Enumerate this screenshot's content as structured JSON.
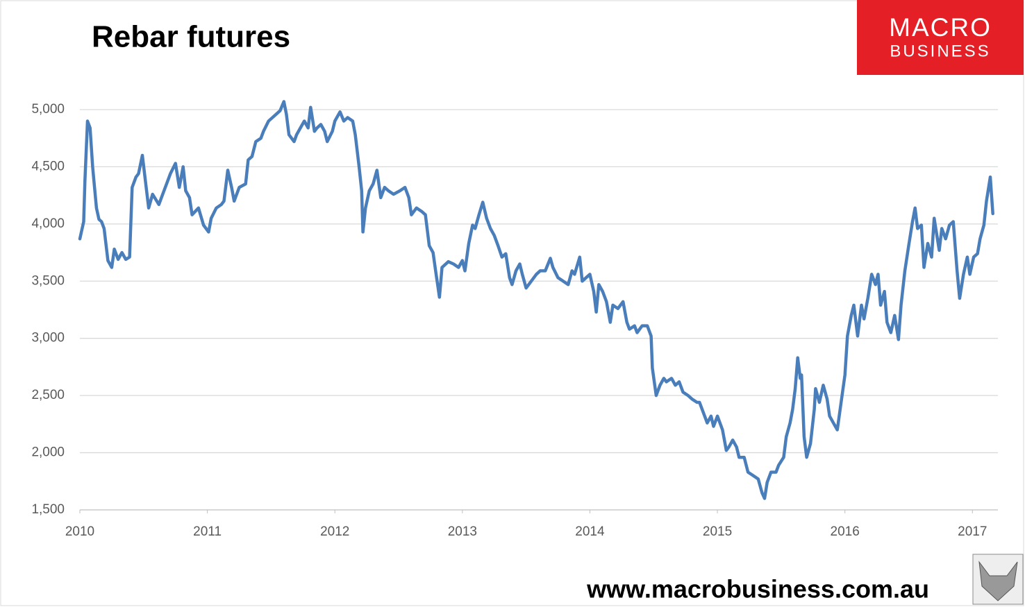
{
  "chart_data": {
    "type": "line",
    "title": "Rebar futures",
    "color": "#4a7ebb",
    "grid": true,
    "xlim": [
      2010,
      2017.2
    ],
    "xticks": [
      2010,
      2011,
      2012,
      2013,
      2014,
      2015,
      2016,
      2017
    ],
    "ylim": [
      1500,
      5200
    ],
    "yticks": [
      {
        "value": 1500,
        "label": "1,500"
      },
      {
        "value": 2000,
        "label": "2,000"
      },
      {
        "value": 2500,
        "label": "2,500"
      },
      {
        "value": 3000,
        "label": "3,000"
      },
      {
        "value": 3500,
        "label": "3,500"
      },
      {
        "value": 4000,
        "label": "4,000"
      },
      {
        "value": 4500,
        "label": "4,500"
      },
      {
        "value": 5000,
        "label": "5,000"
      }
    ],
    "x": [
      2010.0,
      2010.03,
      2010.04,
      2010.06,
      2010.08,
      2010.1,
      2010.11,
      2010.13,
      2010.15,
      2010.17,
      2010.19,
      2010.22,
      2010.25,
      2010.27,
      2010.3,
      2010.33,
      2010.36,
      2010.39,
      2010.41,
      2010.44,
      2010.46,
      2010.49,
      2010.52,
      2010.54,
      2010.57,
      2010.62,
      2010.65,
      2010.71,
      2010.75,
      2010.78,
      2010.81,
      2010.83,
      2010.86,
      2010.88,
      2010.93,
      2010.97,
      2011.01,
      2011.03,
      2011.07,
      2011.11,
      2011.13,
      2011.16,
      2011.19,
      2011.21,
      2011.25,
      2011.3,
      2011.32,
      2011.35,
      2011.38,
      2011.42,
      2011.44,
      2011.48,
      2011.51,
      2011.54,
      2011.57,
      2011.6,
      2011.62,
      2011.64,
      2011.68,
      2011.7,
      2011.73,
      2011.76,
      2011.79,
      2011.81,
      2011.84,
      2011.86,
      2011.89,
      2011.92,
      2011.94,
      2011.98,
      2012.0,
      2012.04,
      2012.07,
      2012.1,
      2012.14,
      2012.16,
      2012.19,
      2012.21,
      2012.22,
      2012.24,
      2012.27,
      2012.3,
      2012.33,
      2012.36,
      2012.39,
      2012.42,
      2012.46,
      2012.51,
      2012.55,
      2012.58,
      2012.6,
      2012.64,
      2012.68,
      2012.71,
      2012.74,
      2012.77,
      2012.79,
      2012.82,
      2012.84,
      2012.89,
      2012.93,
      2012.97,
      2013.0,
      2013.02,
      2013.05,
      2013.08,
      2013.1,
      2013.13,
      2013.16,
      2013.19,
      2013.22,
      2013.25,
      2013.28,
      2013.31,
      2013.34,
      2013.37,
      2013.39,
      2013.42,
      2013.45,
      2013.47,
      2013.5,
      2013.54,
      2013.58,
      2013.61,
      2013.65,
      2013.69,
      2013.71,
      2013.75,
      2013.79,
      2013.83,
      2013.86,
      2013.88,
      2013.92,
      2013.94,
      2013.97,
      2014.0,
      2014.03,
      2014.05,
      2014.07,
      2014.1,
      2014.13,
      2014.16,
      2014.18,
      2014.22,
      2014.26,
      2014.29,
      2014.31,
      2014.35,
      2014.37,
      2014.41,
      2014.45,
      2014.48,
      2014.49,
      2014.52,
      2014.55,
      2014.58,
      2014.6,
      2014.64,
      2014.67,
      2014.7,
      2014.73,
      2014.77,
      2014.8,
      2014.84,
      2014.86,
      2014.89,
      2014.92,
      2014.95,
      2014.97,
      2015.0,
      2015.04,
      2015.07,
      2015.09,
      2015.12,
      2015.15,
      2015.17,
      2015.21,
      2015.24,
      2015.28,
      2015.32,
      2015.35,
      2015.37,
      2015.39,
      2015.42,
      2015.46,
      2015.48,
      2015.52,
      2015.54,
      2015.57,
      2015.59,
      2015.61,
      2015.63,
      2015.65,
      2015.66,
      2015.68,
      2015.7,
      2015.73,
      2015.76,
      2015.77,
      2015.8,
      2015.83,
      2015.86,
      2015.88,
      2015.91,
      2015.94,
      2015.97,
      2016.0,
      2016.02,
      2016.05,
      2016.07,
      2016.1,
      2016.13,
      2016.15,
      2016.18,
      2016.21,
      2016.24,
      2016.26,
      2016.28,
      2016.31,
      2016.33,
      2016.36,
      2016.39,
      2016.42,
      2016.44,
      2016.47,
      2016.5,
      2016.53,
      2016.55,
      2016.57,
      2016.6,
      2016.62,
      2016.65,
      2016.68,
      2016.7,
      2016.74,
      2016.76,
      2016.79,
      2016.82,
      2016.85,
      2016.88,
      2016.9,
      2016.93,
      2016.96,
      2016.98,
      2017.01,
      2017.04,
      2017.06,
      2017.09,
      2017.11,
      2017.14,
      2017.16
    ],
    "values": [
      3870,
      4020,
      4380,
      4900,
      4840,
      4500,
      4380,
      4140,
      4040,
      4020,
      3960,
      3680,
      3620,
      3780,
      3690,
      3750,
      3690,
      3710,
      4320,
      4410,
      4440,
      4600,
      4320,
      4140,
      4260,
      4170,
      4260,
      4440,
      4530,
      4320,
      4500,
      4290,
      4230,
      4080,
      4140,
      3990,
      3930,
      4050,
      4140,
      4170,
      4200,
      4470,
      4320,
      4200,
      4320,
      4350,
      4560,
      4590,
      4720,
      4750,
      4810,
      4900,
      4930,
      4960,
      4990,
      5070,
      4960,
      4780,
      4720,
      4780,
      4840,
      4900,
      4840,
      5020,
      4810,
      4840,
      4870,
      4810,
      4720,
      4810,
      4900,
      4980,
      4900,
      4930,
      4900,
      4780,
      4500,
      4290,
      3930,
      4140,
      4290,
      4350,
      4470,
      4230,
      4320,
      4290,
      4260,
      4290,
      4320,
      4230,
      4080,
      4140,
      4110,
      4080,
      3810,
      3750,
      3590,
      3360,
      3620,
      3670,
      3650,
      3620,
      3680,
      3590,
      3830,
      3990,
      3960,
      4080,
      4190,
      4050,
      3960,
      3900,
      3810,
      3710,
      3740,
      3530,
      3470,
      3590,
      3650,
      3560,
      3440,
      3500,
      3560,
      3590,
      3590,
      3700,
      3620,
      3530,
      3500,
      3470,
      3590,
      3560,
      3710,
      3500,
      3530,
      3560,
      3410,
      3230,
      3470,
      3410,
      3320,
      3140,
      3290,
      3260,
      3320,
      3140,
      3080,
      3110,
      3050,
      3110,
      3110,
      3020,
      2740,
      2500,
      2590,
      2650,
      2620,
      2650,
      2590,
      2620,
      2530,
      2500,
      2470,
      2440,
      2440,
      2350,
      2260,
      2320,
      2230,
      2320,
      2200,
      2020,
      2050,
      2110,
      2050,
      1960,
      1960,
      1830,
      1800,
      1770,
      1650,
      1600,
      1740,
      1830,
      1830,
      1890,
      1960,
      2140,
      2260,
      2380,
      2560,
      2830,
      2650,
      2680,
      2140,
      1960,
      2080,
      2380,
      2560,
      2440,
      2590,
      2470,
      2320,
      2260,
      2200,
      2440,
      2680,
      3020,
      3200,
      3290,
      3020,
      3290,
      3170,
      3350,
      3560,
      3470,
      3560,
      3290,
      3410,
      3140,
      3050,
      3200,
      2990,
      3290,
      3590,
      3810,
      4020,
      4140,
      3960,
      3990,
      3620,
      3830,
      3710,
      4050,
      3770,
      3960,
      3870,
      3990,
      4020,
      3590,
      3350,
      3560,
      3710,
      3560,
      3710,
      3740,
      3870,
      3990,
      4200,
      4410,
      4090
    ]
  },
  "logo": {
    "line1": "MACRO",
    "line2": "BUSINESS"
  },
  "footer": {
    "url": "www.macrobusiness.com.au"
  }
}
